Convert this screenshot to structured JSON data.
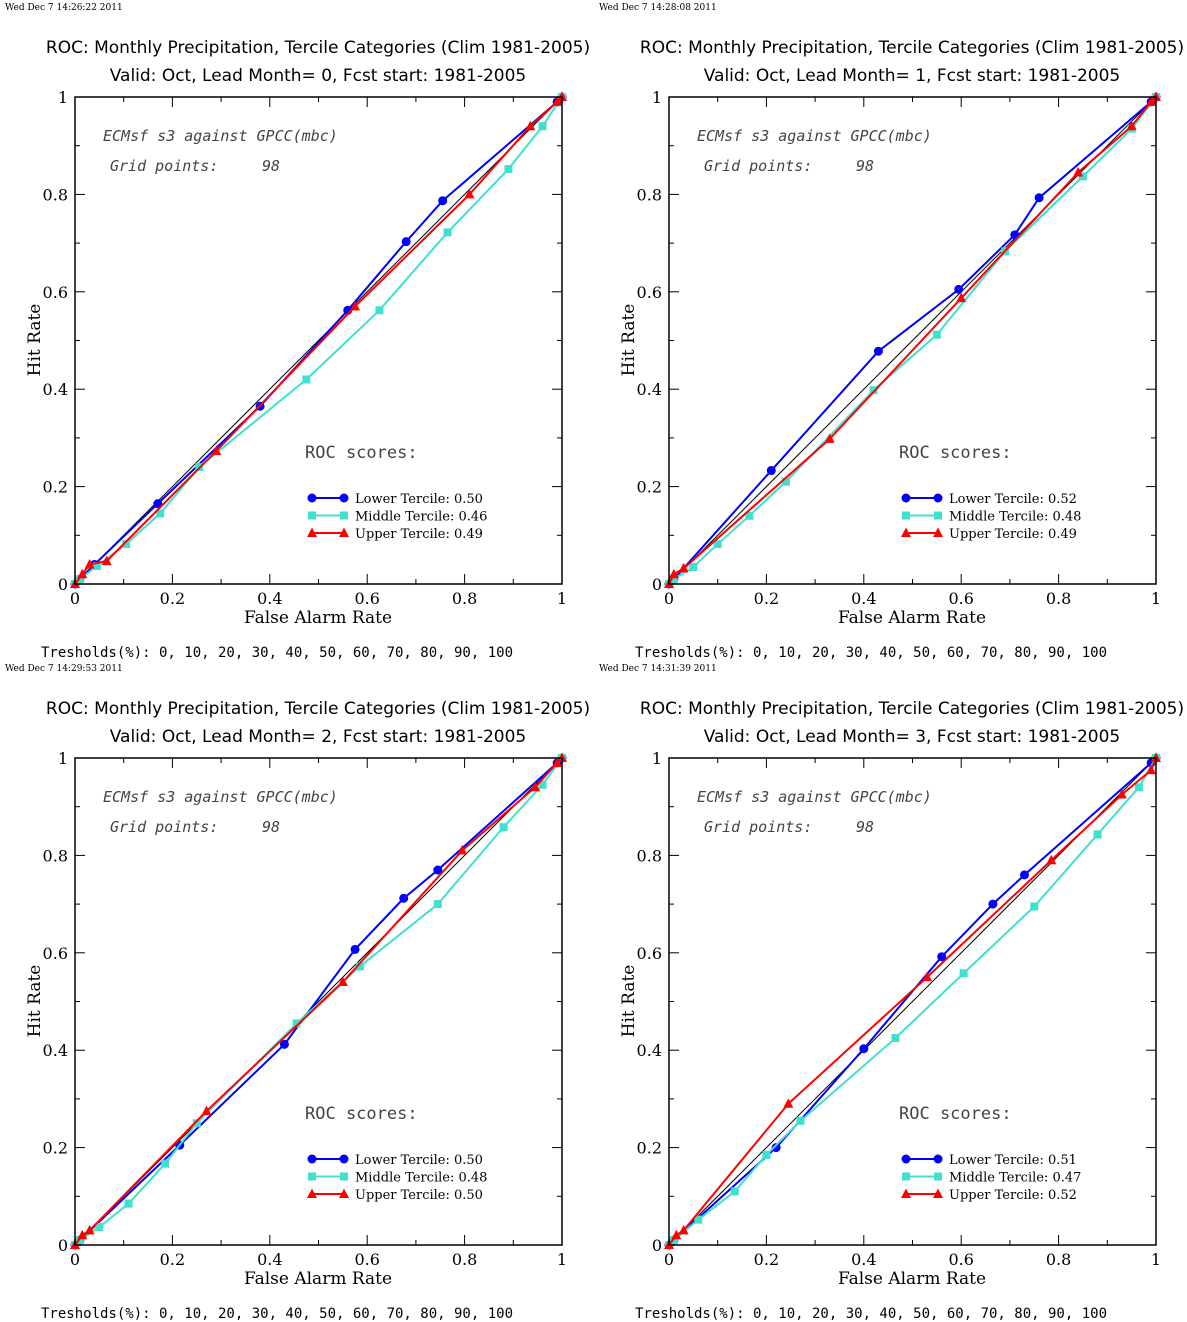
{
  "figure": {
    "threshold_text": "Tresholds(%): 0, 10, 20, 30, 40, 50, 60, 70, 80, 90, 100",
    "info_line1": "ECMsf s3 against GPCC(mbc)",
    "info_line2_label": "Grid points:",
    "info_line2_value": "98",
    "roc_heading": "ROC scores:",
    "xlabel": "False Alarm Rate",
    "ylabel": "Hit Rate",
    "title_line1": "ROC: Monthly Precipitation, Tercile Categories (Clim 1981-2005)",
    "colors": {
      "lower": "#0000ff",
      "middle": "#40e0d0",
      "upper": "#ff0000",
      "diagonal": "#000000"
    }
  },
  "chart_data": [
    {
      "type": "line",
      "timestamp": "Wed Dec  7 14:26:22 2011",
      "title": "ROC: Monthly Precipitation, Tercile Categories (Clim 1981-2005)",
      "subtitle": "Valid: Oct, Lead Month= 0, Fcst start: 1981-2005",
      "xlabel": "False Alarm Rate",
      "ylabel": "Hit Rate",
      "xlim": [
        0,
        1
      ],
      "ylim": [
        0,
        1
      ],
      "xticks": [
        "0",
        "0.2",
        "0.4",
        "0.6",
        "0.8",
        "1"
      ],
      "yticks": [
        "0",
        "0.2",
        "0.4",
        "0.6",
        "0.8",
        "1"
      ],
      "series": [
        {
          "name": "Lower Tercile: 0.50",
          "marker": "circle",
          "x": [
            0,
            0.01,
            0.04,
            0.17,
            0.38,
            0.56,
            0.68,
            0.755,
            0.99,
            1
          ],
          "y": [
            0,
            0.01,
            0.04,
            0.165,
            0.365,
            0.562,
            0.703,
            0.787,
            0.99,
            1
          ]
        },
        {
          "name": "Middle Tercile: 0.46",
          "marker": "square",
          "x": [
            0,
            0.01,
            0.045,
            0.105,
            0.175,
            0.255,
            0.475,
            0.625,
            0.765,
            0.89,
            0.96,
            1
          ],
          "y": [
            0,
            0.01,
            0.037,
            0.082,
            0.145,
            0.24,
            0.42,
            0.562,
            0.722,
            0.852,
            0.94,
            1
          ]
        },
        {
          "name": "Upper Tercile: 0.49",
          "marker": "triangle",
          "x": [
            0,
            0.015,
            0.03,
            0.065,
            0.29,
            0.575,
            0.81,
            0.935,
            0.99,
            1
          ],
          "y": [
            0,
            0.02,
            0.04,
            0.047,
            0.273,
            0.57,
            0.8,
            0.94,
            0.99,
            1
          ]
        }
      ]
    },
    {
      "type": "line",
      "timestamp": "Wed Dec  7 14:28:08 2011",
      "title": "ROC: Monthly Precipitation, Tercile Categories (Clim 1981-2005)",
      "subtitle": "Valid: Oct, Lead Month= 1, Fcst start: 1981-2005",
      "xlabel": "False Alarm Rate",
      "ylabel": "Hit Rate",
      "xlim": [
        0,
        1
      ],
      "ylim": [
        0,
        1
      ],
      "xticks": [
        "0",
        "0.2",
        "0.4",
        "0.6",
        "0.8",
        "1"
      ],
      "yticks": [
        "0",
        "0.2",
        "0.4",
        "0.6",
        "0.8",
        "1"
      ],
      "series": [
        {
          "name": "Lower Tercile: 0.52",
          "marker": "circle",
          "x": [
            0,
            0.01,
            0.21,
            0.43,
            0.595,
            0.71,
            0.76,
            0.99,
            1
          ],
          "y": [
            0,
            0.01,
            0.233,
            0.478,
            0.605,
            0.717,
            0.793,
            0.99,
            1
          ]
        },
        {
          "name": "Middle Tercile: 0.48",
          "marker": "square",
          "x": [
            0,
            0.01,
            0.05,
            0.1,
            0.165,
            0.24,
            0.42,
            0.55,
            0.69,
            0.85,
            0.95,
            1
          ],
          "y": [
            0,
            0.01,
            0.035,
            0.082,
            0.14,
            0.21,
            0.398,
            0.512,
            0.683,
            0.837,
            0.935,
            1
          ]
        },
        {
          "name": "Upper Tercile: 0.49",
          "marker": "triangle",
          "x": [
            0,
            0.01,
            0.03,
            0.33,
            0.6,
            0.84,
            0.95,
            0.99,
            1
          ],
          "y": [
            0,
            0.02,
            0.032,
            0.298,
            0.587,
            0.845,
            0.94,
            0.99,
            1
          ]
        }
      ]
    },
    {
      "type": "line",
      "timestamp": "Wed Dec  7 14:29:53 2011",
      "title": "ROC: Monthly Precipitation, Tercile Categories (Clim 1981-2005)",
      "subtitle": "Valid: Oct, Lead Month= 2, Fcst start: 1981-2005",
      "xlabel": "False Alarm Rate",
      "ylabel": "Hit Rate",
      "xlim": [
        0,
        1
      ],
      "ylim": [
        0,
        1
      ],
      "xticks": [
        "0",
        "0.2",
        "0.4",
        "0.6",
        "0.8",
        "1"
      ],
      "yticks": [
        "0",
        "0.2",
        "0.4",
        "0.6",
        "0.8",
        "1"
      ],
      "series": [
        {
          "name": "Lower Tercile: 0.50",
          "marker": "circle",
          "x": [
            0,
            0.01,
            0.215,
            0.43,
            0.575,
            0.675,
            0.745,
            0.99,
            1
          ],
          "y": [
            0,
            0.01,
            0.205,
            0.412,
            0.607,
            0.712,
            0.77,
            0.99,
            1
          ]
        },
        {
          "name": "Middle Tercile: 0.48",
          "marker": "square",
          "x": [
            0,
            0.01,
            0.05,
            0.11,
            0.185,
            0.25,
            0.455,
            0.585,
            0.745,
            0.88,
            0.96,
            1
          ],
          "y": [
            0,
            0.01,
            0.037,
            0.085,
            0.167,
            0.25,
            0.455,
            0.572,
            0.7,
            0.858,
            0.945,
            1
          ]
        },
        {
          "name": "Upper Tercile: 0.50",
          "marker": "triangle",
          "x": [
            0,
            0.015,
            0.03,
            0.27,
            0.55,
            0.795,
            0.945,
            0.99,
            1
          ],
          "y": [
            0,
            0.02,
            0.03,
            0.275,
            0.54,
            0.81,
            0.94,
            0.99,
            1
          ]
        }
      ]
    },
    {
      "type": "line",
      "timestamp": "Wed Dec  7 14:31:39 2011",
      "title": "ROC: Monthly Precipitation, Tercile Categories (Clim 1981-2005)",
      "subtitle": "Valid: Oct, Lead Month= 3, Fcst start: 1981-2005",
      "xlabel": "False Alarm Rate",
      "ylabel": "Hit Rate",
      "xlim": [
        0,
        1
      ],
      "ylim": [
        0,
        1
      ],
      "xticks": [
        "0",
        "0.2",
        "0.4",
        "0.6",
        "0.8",
        "1"
      ],
      "yticks": [
        "0",
        "0.2",
        "0.4",
        "0.6",
        "0.8",
        "1"
      ],
      "series": [
        {
          "name": "Lower Tercile: 0.51",
          "marker": "circle",
          "x": [
            0,
            0.01,
            0.22,
            0.4,
            0.56,
            0.665,
            0.73,
            0.99,
            1
          ],
          "y": [
            0,
            0.01,
            0.2,
            0.403,
            0.592,
            0.7,
            0.76,
            0.99,
            1
          ]
        },
        {
          "name": "Middle Tercile: 0.47",
          "marker": "square",
          "x": [
            0,
            0.01,
            0.06,
            0.135,
            0.2,
            0.27,
            0.465,
            0.605,
            0.75,
            0.88,
            0.965,
            1
          ],
          "y": [
            0,
            0.01,
            0.052,
            0.11,
            0.185,
            0.255,
            0.425,
            0.558,
            0.695,
            0.843,
            0.94,
            1
          ]
        },
        {
          "name": "Upper Tercile: 0.52",
          "marker": "triangle",
          "x": [
            0,
            0.015,
            0.03,
            0.245,
            0.53,
            0.785,
            0.93,
            0.99,
            1
          ],
          "y": [
            0,
            0.02,
            0.03,
            0.29,
            0.55,
            0.79,
            0.925,
            0.975,
            1
          ]
        }
      ]
    }
  ]
}
